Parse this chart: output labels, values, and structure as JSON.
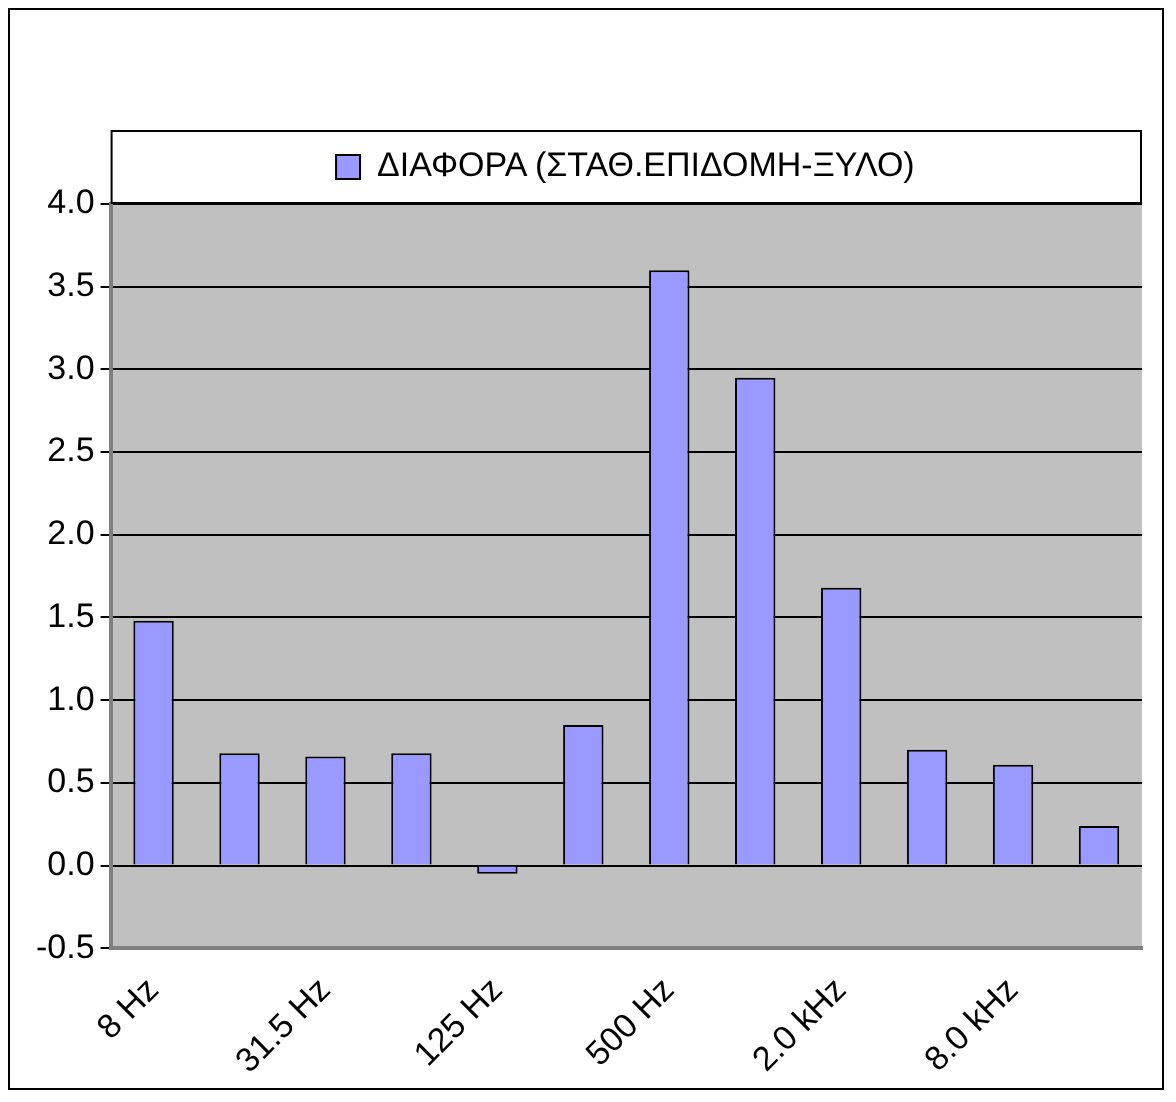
{
  "chart_data": {
    "type": "bar",
    "categories": [
      "8 Hz",
      null,
      "31.5 Hz",
      null,
      "125 Hz",
      null,
      "500 Hz",
      null,
      "2.0 kHz",
      null,
      "8.0 kHz",
      null
    ],
    "series": [
      {
        "name": "ΔΙΑΦΟΡΑ (ΣΤΑΘ.ΕΠΙΔΟΜΗ-ΞΥΛΟ)",
        "color": "#9999ff",
        "values": [
          1.48,
          0.68,
          0.66,
          0.68,
          -0.05,
          0.85,
          3.6,
          2.95,
          1.68,
          0.7,
          0.61,
          0.24
        ]
      }
    ],
    "ylim": [
      -0.5,
      4.0
    ],
    "yticks": [
      {
        "value": -0.5,
        "label": "-0.5"
      },
      {
        "value": 0,
        "label": "0.0"
      },
      {
        "value": 0.5,
        "label": "0.5"
      },
      {
        "value": 1,
        "label": "1.0"
      },
      {
        "value": 1.5,
        "label": "1.5"
      },
      {
        "value": 2,
        "label": "2.0"
      },
      {
        "value": 2.5,
        "label": "2.5"
      },
      {
        "value": 3,
        "label": "3.0"
      },
      {
        "value": 3.5,
        "label": "3.5"
      },
      {
        "value": 4,
        "label": "4.0"
      }
    ],
    "grid": "y",
    "legend": "top"
  }
}
